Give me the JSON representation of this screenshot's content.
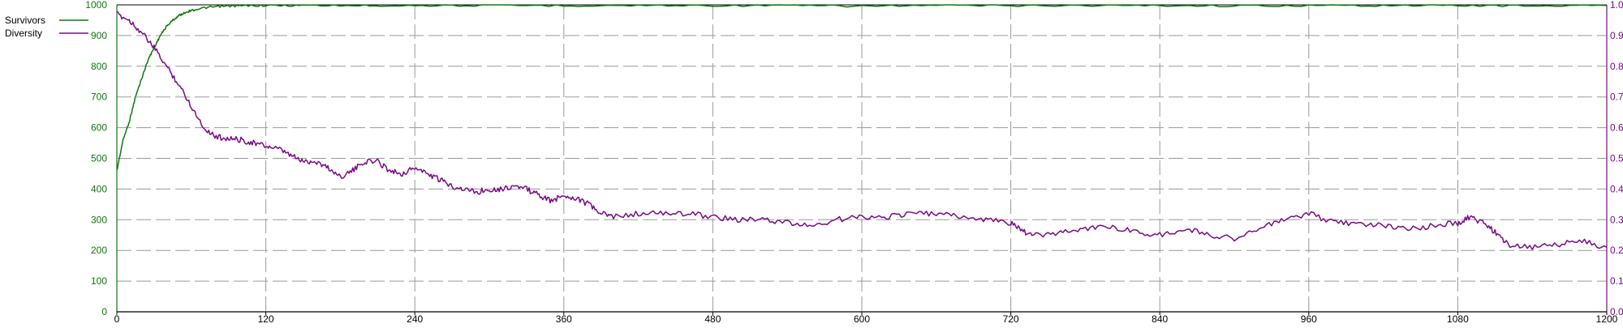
{
  "legend": {
    "items": [
      {
        "name": "Survivors",
        "color": "#0a7a0a"
      },
      {
        "name": "Diversity",
        "color": "#7a0a86"
      }
    ]
  },
  "chart_data": {
    "type": "line",
    "title": "",
    "xlabel": "",
    "ylabel_left": "",
    "ylabel_right": "",
    "grid": true,
    "legend_placement": "top-left",
    "x": {
      "range": [
        0,
        1200
      ],
      "ticks": [
        0,
        120,
        240,
        360,
        480,
        600,
        720,
        840,
        960,
        1080,
        1200
      ],
      "tick_labels": [
        "0",
        "120",
        "240",
        "360",
        "480",
        "600",
        "720",
        "840",
        "960",
        "1080",
        "1200"
      ]
    },
    "y_left": {
      "range": [
        0,
        1000
      ],
      "ticks": [
        0,
        100,
        200,
        300,
        400,
        500,
        600,
        700,
        800,
        900,
        1000
      ],
      "tick_labels": [
        "0",
        "100",
        "200",
        "300",
        "400",
        "500",
        "600",
        "700",
        "800",
        "900",
        "1000"
      ],
      "color": "#0a7a0a"
    },
    "y_right": {
      "range": [
        0,
        1
      ],
      "ticks": [
        0,
        0.1,
        0.2,
        0.3,
        0.4,
        0.5,
        0.6,
        0.7,
        0.8,
        0.9,
        1.0
      ],
      "tick_labels": [
        "0.00",
        "0.10",
        "0.20",
        "0.30",
        "0.40",
        "0.50",
        "0.60",
        "0.70",
        "0.80",
        "0.90",
        "1.00"
      ],
      "color": "#7a0a86"
    },
    "series": [
      {
        "name": "Survivors",
        "axis": "left",
        "color": "#0a7a0a",
        "x": [
          0,
          5,
          10,
          15,
          20,
          25,
          30,
          35,
          40,
          45,
          50,
          55,
          60,
          70,
          80,
          90,
          100,
          120,
          150,
          200,
          240,
          300,
          360,
          420,
          480,
          540,
          600,
          660,
          720,
          780,
          840,
          900,
          960,
          1020,
          1080,
          1140,
          1200
        ],
        "y": [
          460,
          560,
          620,
          700,
          760,
          820,
          860,
          900,
          930,
          950,
          965,
          975,
          982,
          990,
          994,
          996,
          997,
          998,
          998,
          998,
          998,
          998,
          998,
          998,
          998,
          998,
          996,
          998,
          998,
          998,
          998,
          997,
          998,
          998,
          998,
          997,
          998
        ]
      },
      {
        "name": "Diversity",
        "axis": "right",
        "color": "#7a0a86",
        "x": [
          0,
          10,
          20,
          30,
          40,
          50,
          60,
          70,
          80,
          90,
          100,
          110,
          120,
          130,
          140,
          150,
          160,
          170,
          180,
          190,
          200,
          210,
          220,
          230,
          240,
          250,
          260,
          270,
          280,
          290,
          300,
          310,
          320,
          330,
          340,
          350,
          360,
          370,
          380,
          390,
          400,
          420,
          440,
          460,
          480,
          500,
          520,
          540,
          560,
          580,
          600,
          620,
          640,
          660,
          680,
          700,
          720,
          730,
          740,
          760,
          780,
          800,
          820,
          840,
          860,
          880,
          900,
          920,
          940,
          960,
          980,
          1000,
          1020,
          1040,
          1060,
          1080,
          1090,
          1100,
          1110,
          1120,
          1140,
          1160,
          1180,
          1200
        ],
        "y": [
          0.97,
          0.95,
          0.91,
          0.86,
          0.8,
          0.74,
          0.67,
          0.6,
          0.57,
          0.565,
          0.56,
          0.55,
          0.54,
          0.53,
          0.51,
          0.49,
          0.49,
          0.47,
          0.44,
          0.46,
          0.49,
          0.49,
          0.46,
          0.45,
          0.47,
          0.45,
          0.43,
          0.41,
          0.4,
          0.39,
          0.4,
          0.4,
          0.41,
          0.4,
          0.38,
          0.36,
          0.38,
          0.37,
          0.35,
          0.32,
          0.31,
          0.32,
          0.32,
          0.32,
          0.31,
          0.3,
          0.3,
          0.29,
          0.28,
          0.3,
          0.31,
          0.31,
          0.32,
          0.32,
          0.31,
          0.3,
          0.29,
          0.26,
          0.25,
          0.26,
          0.27,
          0.28,
          0.26,
          0.25,
          0.27,
          0.25,
          0.24,
          0.27,
          0.3,
          0.32,
          0.29,
          0.29,
          0.28,
          0.27,
          0.28,
          0.29,
          0.31,
          0.29,
          0.26,
          0.22,
          0.21,
          0.22,
          0.23,
          0.21
        ]
      }
    ]
  }
}
